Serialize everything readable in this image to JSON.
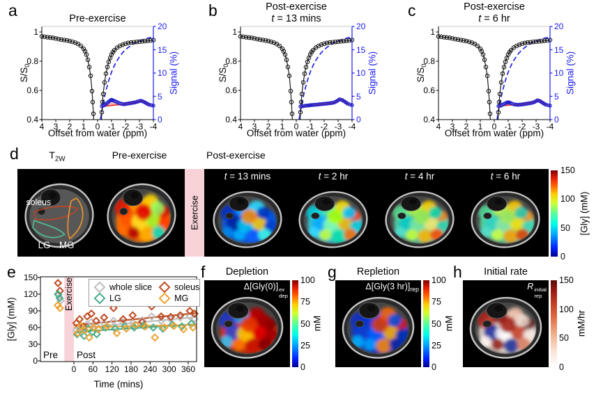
{
  "spectra_shared": {
    "xlabel": "Offset from water (ppm)",
    "ylabel_left": [
      {
        "t": "S/S"
      },
      {
        "t": "0",
        "sub": true
      }
    ],
    "ylabel_right": "Signal (%)",
    "xticks": [
      4,
      3,
      2,
      1,
      0,
      -1,
      -2,
      -3,
      -4
    ],
    "yticks_left": [
      0.4,
      0.6,
      0.8,
      1
    ],
    "yticks_right": [
      0,
      5,
      10,
      15,
      20
    ],
    "zx": [
      4,
      3.8,
      3.6,
      3.4,
      3.2,
      3,
      2.8,
      2.6,
      2.4,
      2.2,
      2,
      1.8,
      1.6,
      1.4,
      1.2,
      1,
      0.9,
      0.8,
      0.7,
      0.6,
      0.5,
      0.4,
      0.35,
      0.3,
      0.25,
      -0.25,
      -0.3,
      -0.35,
      -0.4,
      -0.5,
      -0.6,
      -0.7,
      -0.8,
      -0.9,
      -1,
      -1.1,
      -1.2,
      -1.4,
      -1.6,
      -1.8,
      -2,
      -2.2,
      -2.4,
      -2.6,
      -2.8,
      -3,
      -3.2,
      -3.4,
      -3.6,
      -3.8,
      -4
    ],
    "zy": [
      0.97,
      0.967,
      0.964,
      0.962,
      0.96,
      0.956,
      0.952,
      0.948,
      0.945,
      0.942,
      0.938,
      0.933,
      0.927,
      0.918,
      0.905,
      0.885,
      0.868,
      0.845,
      0.81,
      0.76,
      0.7,
      0.595,
      0.52,
      0.44,
      0.33,
      0.34,
      0.45,
      0.52,
      0.575,
      0.655,
      0.715,
      0.76,
      0.795,
      0.822,
      0.845,
      0.862,
      0.875,
      0.893,
      0.905,
      0.913,
      0.92,
      0.925,
      0.928,
      0.93,
      0.932,
      0.934,
      0.936,
      0.938,
      0.94,
      0.942,
      0.945
    ],
    "fit_x": [
      -0.2,
      -0.3,
      -0.4,
      -0.5,
      -0.6,
      -0.8,
      -1,
      -1.2,
      -1.4,
      -1.6,
      -1.8,
      -2,
      -2.2,
      -2.4,
      -2.6,
      -2.8,
      -3,
      -3.2,
      -3.4,
      -3.6,
      -3.8,
      -4
    ],
    "fit_y": [
      0,
      1.8,
      3.4,
      4.9,
      6.2,
      8.4,
      10.2,
      11.6,
      12.7,
      13.6,
      14.4,
      15,
      15.5,
      15.9,
      16.3,
      16.6,
      16.9,
      17.1,
      17.3,
      17.5,
      17.6,
      17.8
    ],
    "colors": {
      "zspectrum": "#1a1a1a",
      "fit_dashed": "#2222e8",
      "diff_circles": "#2424cc",
      "baseline_red": "#e8261f",
      "fill_pink": "rgba(242,110,110,0.5)",
      "right_axis_blue": "#1a1aee"
    }
  },
  "chart_data": [
    {
      "id": "a",
      "letter": "a",
      "type": "line",
      "title": [
        [
          {
            "t": "Pre-exercise"
          }
        ]
      ],
      "diff_x": [
        -0.3,
        -0.5,
        -0.7,
        -0.9,
        -1,
        -1.1,
        -1.3,
        -1.5,
        -1.7,
        -1.9,
        -2.1,
        -2.3,
        -2.5,
        -2.7,
        -2.9,
        -3.1,
        -3.3,
        -3.5,
        -3.7,
        -4
      ],
      "diff_y": [
        2.9,
        3.1,
        3.6,
        4.1,
        4.25,
        4.15,
        3.9,
        3.6,
        3.4,
        3.3,
        3.4,
        3.5,
        3.6,
        3.7,
        3.9,
        4.05,
        3.85,
        3.5,
        3.2,
        3.0
      ],
      "base_y": [
        2.85,
        2.9,
        2.95,
        3.0,
        3.05,
        3.08,
        3.13,
        3.18,
        3.24,
        3.3,
        3.4,
        3.5,
        3.6,
        3.7,
        3.9,
        4.05,
        3.85,
        3.5,
        3.2,
        3.0
      ]
    },
    {
      "id": "b",
      "letter": "b",
      "type": "line",
      "title": [
        [
          {
            "t": "Post-exercise"
          }
        ],
        [
          {
            "t": "t",
            "i": true
          },
          {
            "t": " = 13 mins"
          }
        ]
      ],
      "diff_x": [
        -0.3,
        -0.5,
        -0.7,
        -0.9,
        -1,
        -1.1,
        -1.3,
        -1.5,
        -1.7,
        -1.9,
        -2.1,
        -2.3,
        -2.5,
        -2.7,
        -2.9,
        -3.1,
        -3.3,
        -3.5,
        -3.7,
        -4
      ],
      "diff_y": [
        2.8,
        2.9,
        3.0,
        3.05,
        3.1,
        3.12,
        3.17,
        3.22,
        3.3,
        3.36,
        3.42,
        3.48,
        3.56,
        3.66,
        3.95,
        4.35,
        4.2,
        3.8,
        3.4,
        3.1
      ],
      "base_y": [
        2.76,
        2.87,
        2.97,
        3.02,
        3.07,
        3.09,
        3.14,
        3.19,
        3.27,
        3.33,
        3.4,
        3.46,
        3.54,
        3.64,
        3.93,
        4.33,
        4.18,
        3.78,
        3.38,
        3.08
      ]
    },
    {
      "id": "c",
      "letter": "c",
      "type": "line",
      "title": [
        [
          {
            "t": "Post-exercise"
          }
        ],
        [
          {
            "t": "t",
            "i": true
          },
          {
            "t": " = 6 hr"
          }
        ]
      ],
      "diff_x": [
        -0.3,
        -0.5,
        -0.7,
        -0.9,
        -1,
        -1.1,
        -1.3,
        -1.5,
        -1.7,
        -1.9,
        -2.1,
        -2.3,
        -2.5,
        -2.7,
        -2.9,
        -3.1,
        -3.3,
        -3.5,
        -3.7,
        -4
      ],
      "diff_y": [
        2.9,
        3.05,
        3.35,
        3.65,
        3.72,
        3.65,
        3.4,
        3.22,
        3.18,
        3.22,
        3.3,
        3.4,
        3.5,
        3.6,
        3.8,
        4.15,
        3.95,
        3.55,
        3.2,
        3.0
      ],
      "base_y": [
        2.85,
        2.92,
        3.0,
        3.06,
        3.1,
        3.12,
        3.16,
        3.2,
        3.17,
        3.21,
        3.3,
        3.4,
        3.5,
        3.6,
        3.8,
        4.15,
        3.95,
        3.55,
        3.2,
        3.0
      ]
    },
    {
      "id": "e",
      "letter": "e",
      "type": "scatter",
      "xlabel": "Time (mins)",
      "ylabel": "[Gly] (mM)",
      "xticks": [
        0,
        60,
        120,
        180,
        240,
        300,
        360
      ],
      "yticks": [
        0,
        30,
        60,
        90,
        120,
        150
      ],
      "xlim": [
        -105,
        385
      ],
      "ylim": [
        0,
        150
      ],
      "pre_label": "Pre",
      "post_label": "Post",
      "exercise_label": "Exercise",
      "exercise_span": [
        -30,
        0
      ],
      "series": [
        {
          "name": "whole slice",
          "color": "#bdbdbd",
          "pre": [
            [
              -48,
              118
            ],
            [
              -42,
              108
            ]
          ],
          "post": [
            [
              8,
              55
            ],
            [
              18,
              62
            ],
            [
              28,
              58
            ],
            [
              40,
              65
            ],
            [
              55,
              70
            ],
            [
              70,
              63
            ],
            [
              95,
              68
            ],
            [
              125,
              72
            ],
            [
              155,
              70
            ],
            [
              185,
              68
            ],
            [
              215,
              73
            ],
            [
              245,
              80
            ],
            [
              275,
              72
            ],
            [
              305,
              75
            ],
            [
              335,
              78
            ],
            [
              365,
              80
            ],
            [
              380,
              76
            ]
          ],
          "trend": [
            [
              0,
              58
            ],
            [
              385,
              79
            ]
          ]
        },
        {
          "name": "soleus",
          "color": "#bf4b22",
          "pre": [
            [
              -50,
              140
            ],
            [
              -44,
              126
            ]
          ],
          "post": [
            [
              8,
              68
            ],
            [
              18,
              75
            ],
            [
              30,
              62
            ],
            [
              42,
              80
            ],
            [
              55,
              85
            ],
            [
              70,
              72
            ],
            [
              95,
              78
            ],
            [
              125,
              95
            ],
            [
              155,
              75
            ],
            [
              185,
              82
            ],
            [
              215,
              70
            ],
            [
              245,
              98
            ],
            [
              275,
              80
            ],
            [
              305,
              79
            ],
            [
              335,
              82
            ],
            [
              365,
              90
            ],
            [
              380,
              85
            ]
          ],
          "trend": [
            [
              0,
              64
            ],
            [
              385,
              86
            ]
          ]
        },
        {
          "name": "LG",
          "color": "#46ab8b",
          "pre": [
            [
              -50,
              120
            ],
            [
              -45,
              113
            ]
          ],
          "post": [
            [
              10,
              48
            ],
            [
              20,
              55
            ],
            [
              32,
              45
            ],
            [
              45,
              58
            ],
            [
              58,
              52
            ],
            [
              72,
              48
            ],
            [
              100,
              60
            ],
            [
              130,
              58
            ],
            [
              160,
              62
            ],
            [
              190,
              60
            ],
            [
              220,
              63
            ],
            [
              250,
              60
            ],
            [
              280,
              58
            ],
            [
              310,
              65
            ],
            [
              340,
              62
            ],
            [
              370,
              67
            ]
          ],
          "trend": [
            [
              0,
              52
            ],
            [
              385,
              66
            ]
          ]
        },
        {
          "name": "MG",
          "color": "#eda333",
          "pre": [
            [
              -51,
              100
            ],
            [
              -44,
              95
            ]
          ],
          "post": [
            [
              12,
              50
            ],
            [
              22,
              63
            ],
            [
              35,
              55
            ],
            [
              48,
              42
            ],
            [
              62,
              60
            ],
            [
              78,
              57
            ],
            [
              105,
              62
            ],
            [
              135,
              50
            ],
            [
              165,
              58
            ],
            [
              195,
              65
            ],
            [
              225,
              62
            ],
            [
              255,
              42
            ],
            [
              285,
              60
            ],
            [
              315,
              63
            ],
            [
              345,
              57
            ],
            [
              375,
              60
            ]
          ],
          "trend": [
            [
              0,
              60
            ],
            [
              385,
              65
            ]
          ]
        }
      ],
      "legend_order": [
        "whole slice",
        "soleus",
        "LG",
        "MG"
      ]
    }
  ],
  "panel_d": {
    "letter": "d",
    "t2w_label": [
      {
        "t": "T"
      },
      {
        "t": "2W",
        "sub": true
      }
    ],
    "pre_label": "Pre-exercise",
    "post_label": "Post-exercise",
    "exercise_label": "Exercise",
    "exercise_band_color": "#f7d3d7",
    "rois": [
      {
        "name": "soleus",
        "color": "#b5472a"
      },
      {
        "name": "LG",
        "color": "#52b88e"
      },
      {
        "name": "MG",
        "color": "#e8932c"
      }
    ],
    "post_times": [
      [
        {
          "t": "t",
          "i": true
        },
        {
          "t": " = 13 mins"
        }
      ],
      [
        {
          "t": "t",
          "i": true
        },
        {
          "t": " = 2 hr"
        }
      ],
      [
        {
          "t": "t",
          "i": true
        },
        {
          "t": " = 4 hr"
        }
      ],
      [
        {
          "t": "t",
          "i": true
        },
        {
          "t": " = 6 hr"
        }
      ]
    ],
    "legs": {
      "pre": {
        "base": "#ff7300",
        "spots": [
          "#e81500",
          "#ff9900",
          "#ffd900",
          "#d40000",
          "#ff5100",
          "#ffe81e",
          "#9cff2e",
          "#ff3c00",
          "#b30000",
          "#ffb300",
          "#00e0c8",
          "#ff6a00",
          "#e00000",
          "#8cff66"
        ]
      },
      "t13": {
        "base": "#1257e0",
        "spots": [
          "#0030c8",
          "#00a2ff",
          "#30e0ff",
          "#0055e6",
          "#001f9e",
          "#00c8f0",
          "#ffd000",
          "#0040d0",
          "#00b4ff",
          "#1060ff",
          "#40ffe8",
          "#0088ee",
          "#ff8c00",
          "#0033bb"
        ]
      },
      "t2": {
        "base": "#35c8d8",
        "spots": [
          "#00d2e0",
          "#55e89a",
          "#ffe100",
          "#ff3c00",
          "#00a8ff",
          "#88ffb0",
          "#ffb300",
          "#00c8d8",
          "#c8ff37",
          "#00e0a8",
          "#ff6a00",
          "#30d8ff",
          "#aaff00",
          "#00bfff"
        ]
      },
      "t4": {
        "base": "#4fd0a0",
        "spots": [
          "#58e090",
          "#b8f040",
          "#ffd000",
          "#ff7b00",
          "#00c8c8",
          "#7de8a0",
          "#ffe86e",
          "#30d0b0",
          "#c8ff37",
          "#ffb300",
          "#ff4400",
          "#50e0d0",
          "#96e850",
          "#00d2b4"
        ]
      },
      "t6": {
        "base": "#55d498",
        "spots": [
          "#50dc96",
          "#c8f04a",
          "#ffc800",
          "#ff8c00",
          "#30d2c8",
          "#8ce8a8",
          "#ffe100",
          "#40d8b8",
          "#d2ff41",
          "#ff9e00",
          "#e03c00",
          "#55e0cf",
          "#a0e85a",
          "#20c8b4"
        ]
      }
    },
    "colorbar": {
      "ticks": [
        0,
        50,
        100,
        150
      ],
      "max": 150,
      "unit": "[Gly] (mM)"
    }
  },
  "maps": {
    "f": {
      "letter": "f",
      "title": "Depletion",
      "annotation": [
        {
          "t": "Δ[Gly(0)]"
        },
        {
          "stack": {
            "sup": "ex",
            "sub": "dep"
          }
        }
      ],
      "leg": {
        "base": "#d83000",
        "spots": [
          "#1535cc",
          "#00a2ff",
          "#b00000",
          "#7f0000",
          "#2a48d8",
          "#ffd000",
          "#e00000",
          "#9e0000",
          "#ff7b00",
          "#c81400",
          "#7f0000",
          "#30c8ff",
          "#e83200",
          "#a00000"
        ]
      },
      "colorbar": {
        "ticks": [
          0,
          25,
          50,
          75,
          100
        ],
        "max": 100,
        "unit": "mM"
      }
    },
    "g": {
      "letter": "g",
      "title": "Repletion",
      "annotation": [
        {
          "t": "Δ[Gly(3 hr)]"
        },
        {
          "t": "rep",
          "sub": true
        }
      ],
      "leg": {
        "base": "#1038c8",
        "spots": [
          "#0f2fc8",
          "#0041e0",
          "#ff6a00",
          "#e81500",
          "#1040d0",
          "#0060ff",
          "#ffb300",
          "#0030b4",
          "#00a2ff",
          "#ff8c00",
          "#1028a0",
          "#00b4ff",
          "#e03c00",
          "#0050e0"
        ]
      },
      "colorbar": {
        "ticks": [
          0,
          25,
          50,
          75,
          100
        ],
        "max": 100,
        "unit": "mM"
      }
    },
    "h": {
      "letter": "h",
      "title": "Initial rate",
      "annotation": [
        {
          "t": "R",
          "i": true
        },
        {
          "stack": {
            "sup": "initial",
            "sub": "rep"
          }
        }
      ],
      "leg": {
        "base": "#f2e2d8",
        "spots": [
          "#b22216",
          "#7f120c",
          "#f0c0aa",
          "#5c0f0a",
          "#16289e",
          "#ffffff",
          "#c43a22",
          "#f6e8e0",
          "#8f1710",
          "#142c96",
          "#d87a5a",
          "#fff6f0",
          "#a01810",
          "#ecd8cc"
        ]
      },
      "colorbar": {
        "ticks": [
          0,
          50,
          100,
          150
        ],
        "max": 150,
        "unit": "mM/hr"
      }
    }
  }
}
